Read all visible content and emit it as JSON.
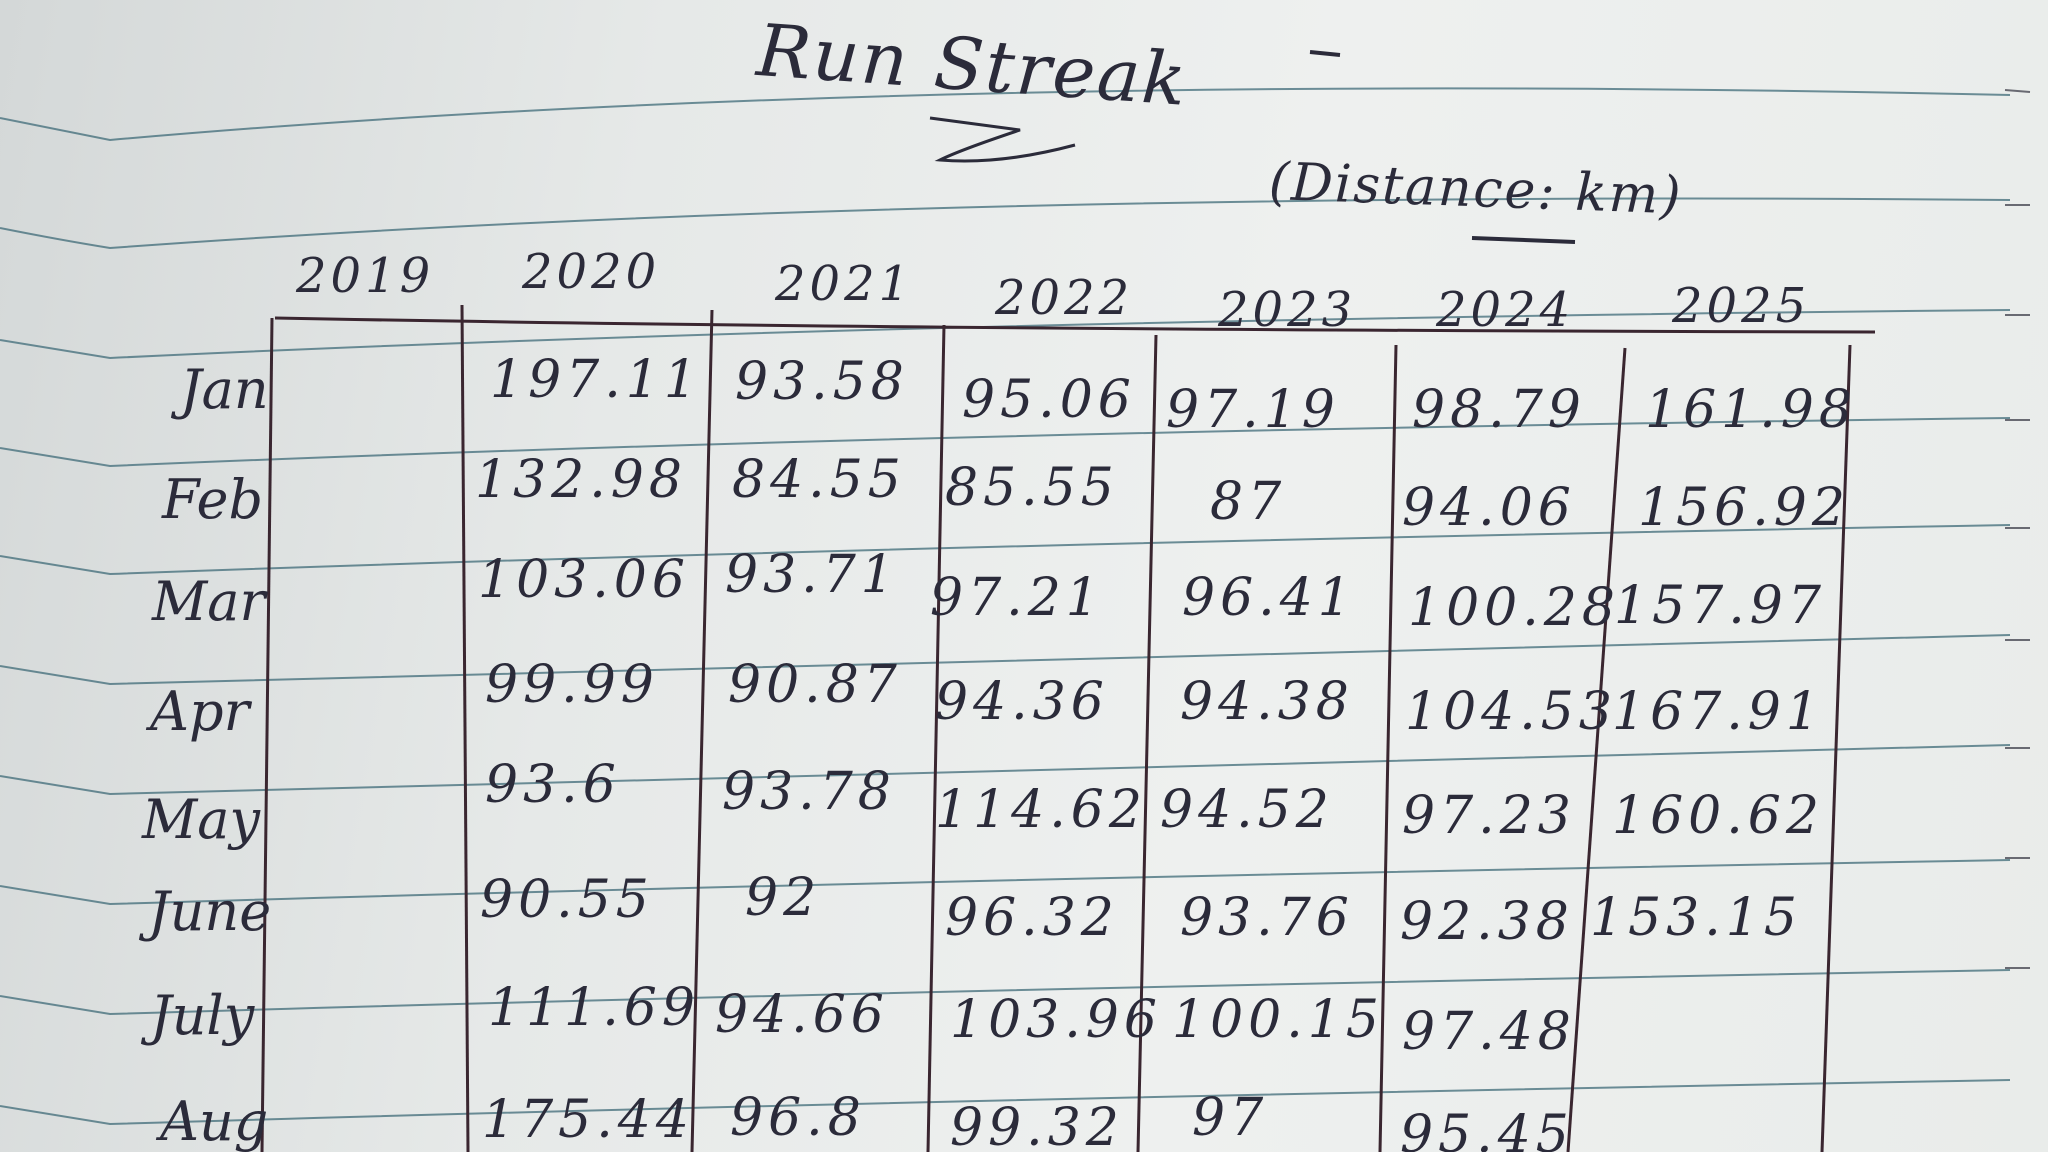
{
  "title": "Run Streak",
  "unit_note": "(Distance: km)",
  "years": [
    "2019",
    "2020",
    "2021",
    "2022",
    "2023",
    "2024",
    "2025"
  ],
  "months": [
    "Jan",
    "Feb",
    "Mar",
    "Apr",
    "May",
    "June",
    "July",
    "Aug"
  ],
  "rows": [
    {
      "month": "Jan",
      "values": [
        "",
        "197.11",
        "93.58",
        "95.06",
        "97.19",
        "98.79",
        "161.98"
      ]
    },
    {
      "month": "Feb",
      "values": [
        "",
        "132.98",
        "84.55",
        "85.55",
        "87",
        "94.06",
        "156.92"
      ]
    },
    {
      "month": "Mar",
      "values": [
        "",
        "103.06",
        "93.71",
        "97.21",
        "96.41",
        "100.28",
        "157.97"
      ]
    },
    {
      "month": "Apr",
      "values": [
        "",
        "99.99",
        "90.87",
        "94.36",
        "94.38",
        "104.53",
        "167.91"
      ]
    },
    {
      "month": "May",
      "values": [
        "",
        "93.6",
        "93.78",
        "114.62",
        "94.52",
        "97.23",
        "160.62"
      ]
    },
    {
      "month": "June",
      "values": [
        "",
        "90.55",
        "92",
        "96.32",
        "93.76",
        "92.38",
        "153.15"
      ]
    },
    {
      "month": "July",
      "values": [
        "",
        "111.69",
        "94.66",
        "103.96",
        "100.15",
        "97.48",
        ""
      ]
    },
    {
      "month": "Aug",
      "values": [
        "",
        "175.44",
        "96.8",
        "99.32",
        "97",
        "95.45",
        ""
      ]
    }
  ]
}
